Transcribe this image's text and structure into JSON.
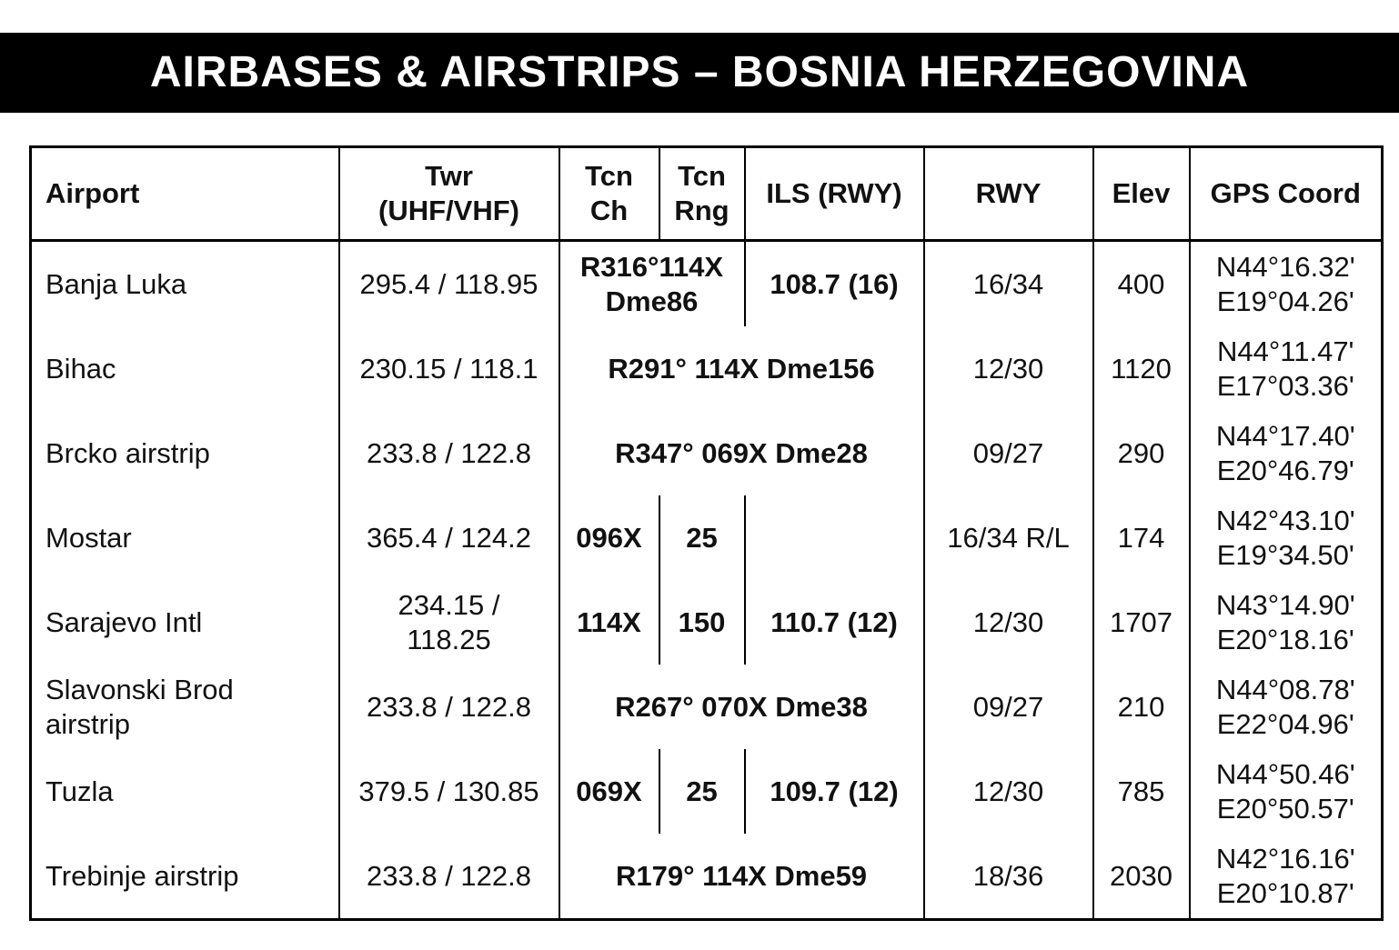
{
  "title": "AIRBASES & AIRSTRIPS – BOSNIA HERZEGOVINA",
  "headers": {
    "airport": "Airport",
    "twr": [
      "Twr",
      "(UHF/VHF)"
    ],
    "tcn_ch": [
      "Tcn",
      "Ch"
    ],
    "tcn_rng": [
      "Tcn",
      "Rng"
    ],
    "ils": "ILS (RWY)",
    "rwy": "RWY",
    "elev": "Elev",
    "gps": "GPS Coord"
  },
  "rows": [
    {
      "airport": [
        "Banja Luka"
      ],
      "twr": [
        "295.4 / 118.95"
      ],
      "tacan_combined": [
        "R316°114X",
        "Dme86"
      ],
      "ils": "108.7 (16)",
      "rwy": "16/34",
      "elev": "400",
      "gps": [
        "N44°16.32'",
        "E19°04.26'"
      ]
    },
    {
      "airport": [
        "Bihac"
      ],
      "twr": [
        "230.15 / 118.1"
      ],
      "tacan_span": "R291° 114X Dme156",
      "rwy": "12/30",
      "elev": "1120",
      "gps": [
        "N44°11.47'",
        "E17°03.36'"
      ]
    },
    {
      "airport": [
        "Brcko airstrip"
      ],
      "twr": [
        "233.8 / 122.8"
      ],
      "tacan_span": "R347° 069X Dme28",
      "rwy": "09/27",
      "elev": "290",
      "gps": [
        "N44°17.40'",
        "E20°46.79'"
      ]
    },
    {
      "airport": [
        "Mostar"
      ],
      "twr": [
        "365.4 / 124.2"
      ],
      "tcn_ch": "096X",
      "tcn_rng": "25",
      "ils": "",
      "rwy": "16/34 R/L",
      "elev": "174",
      "gps": [
        "N42°43.10'",
        "E19°34.50'"
      ]
    },
    {
      "airport": [
        "Sarajevo Intl"
      ],
      "twr": [
        "234.15 /",
        "118.25"
      ],
      "tcn_ch": "114X",
      "tcn_rng": "150",
      "ils": "110.7 (12)",
      "rwy": "12/30",
      "elev": "1707",
      "gps": [
        "N43°14.90'",
        "E20°18.16'"
      ]
    },
    {
      "airport": [
        "Slavonski Brod",
        "airstrip"
      ],
      "twr": [
        "233.8 / 122.8"
      ],
      "tacan_span": "R267° 070X Dme38",
      "rwy": "09/27",
      "elev": "210",
      "gps": [
        "N44°08.78'",
        "E22°04.96'"
      ]
    },
    {
      "airport": [
        "Tuzla"
      ],
      "twr": [
        "379.5 / 130.85"
      ],
      "tcn_ch": "069X",
      "tcn_rng": "25",
      "ils": "109.7 (12)",
      "rwy": "12/30",
      "elev": "785",
      "gps": [
        "N44°50.46'",
        "E20°50.57'"
      ]
    },
    {
      "airport": [
        "Trebinje airstrip"
      ],
      "twr": [
        "233.8 / 122.8"
      ],
      "tacan_span": "R179° 114X Dme59",
      "rwy": "18/36",
      "elev": "2030",
      "gps": [
        "N42°16.16'",
        "E20°10.87'"
      ]
    }
  ]
}
